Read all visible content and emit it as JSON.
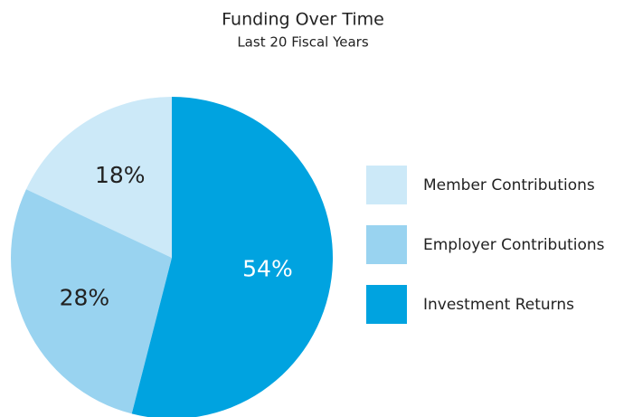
{
  "chart_data": {
    "type": "pie",
    "title": "Funding Over Time",
    "subtitle": "Last 20 Fiscal Years",
    "categories": [
      "Member Contributions",
      "Employer Contributions",
      "Investment Returns"
    ],
    "values": [
      18,
      28,
      54
    ],
    "value_labels": [
      "18%",
      "28%",
      "54%"
    ],
    "colors": [
      "#cce9f8",
      "#99d3f0",
      "#00a3e0"
    ],
    "label_colors": [
      "#222222",
      "#222222",
      "#ffffff"
    ]
  }
}
